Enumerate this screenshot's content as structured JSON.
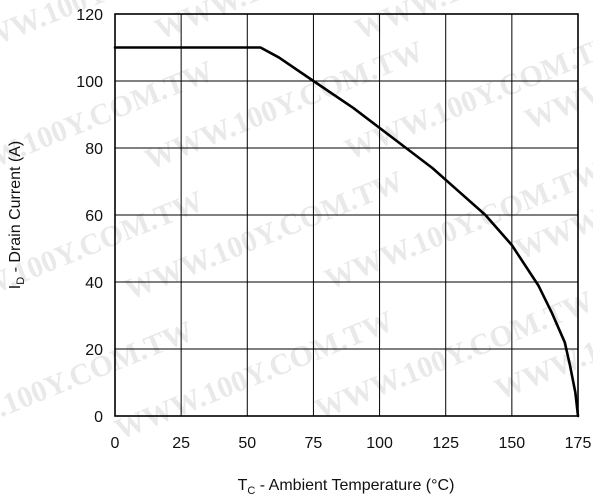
{
  "chart_data": {
    "type": "line",
    "title": "",
    "xlabel": {
      "main": "T",
      "sub": "C",
      "rest": " - Ambient Temperature (°C)"
    },
    "ylabel": {
      "main": "I",
      "sub": "D",
      "rest": " - Drain Current (A)"
    },
    "xlim": [
      0,
      175
    ],
    "ylim": [
      0,
      120
    ],
    "xticks": [
      "0",
      "25",
      "50",
      "75",
      "100",
      "125",
      "150",
      "175"
    ],
    "yticks": [
      "0",
      "20",
      "40",
      "60",
      "80",
      "100",
      "120"
    ],
    "grid": true,
    "watermark": "WWW.100Y.COM.TW",
    "series": [
      {
        "color": "#000000",
        "x": [
          0,
          55,
          62,
          75,
          90,
          100,
          110,
          120,
          130,
          140,
          150,
          160,
          165,
          170,
          172,
          174,
          175
        ],
        "y": [
          110,
          110,
          107,
          100,
          92,
          86,
          80,
          74,
          67,
          60,
          51,
          39,
          31,
          22,
          15,
          7,
          0
        ]
      }
    ]
  }
}
